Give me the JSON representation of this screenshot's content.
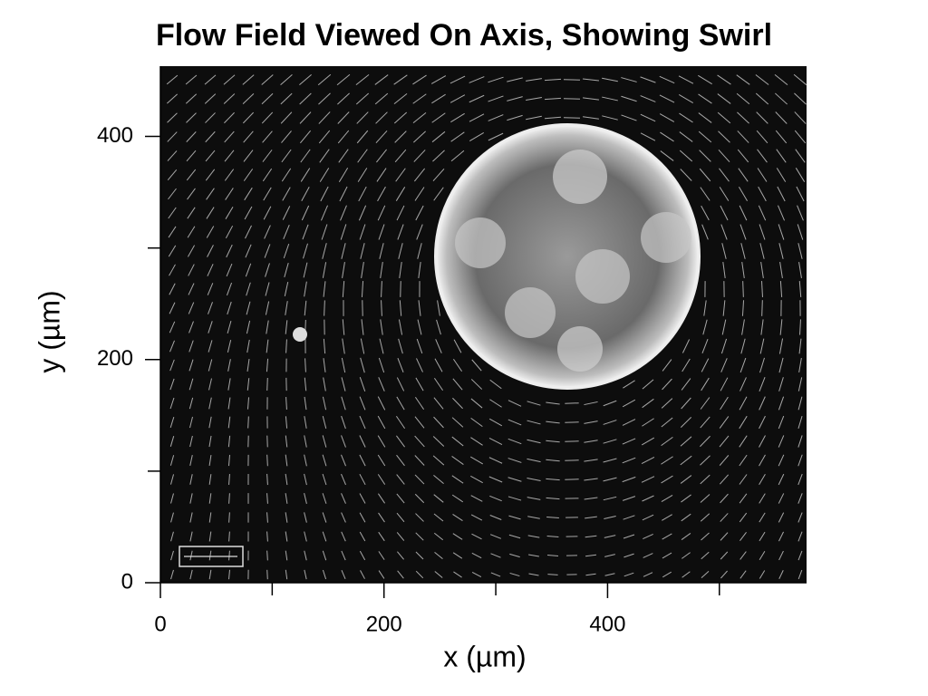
{
  "chart_data": {
    "type": "image",
    "title": "Flow Field Viewed On Axis, Showing Swirl",
    "xlabel": "x (µm)",
    "ylabel": "y (µm)",
    "xlim": [
      0,
      578
    ],
    "ylim": [
      0,
      463
    ],
    "xticks": [
      0,
      200,
      400
    ],
    "yticks": [
      0,
      200,
      400
    ],
    "xminor_ticks": [
      100,
      300,
      500
    ],
    "yminor_ticks": [
      100,
      300
    ]
  }
}
